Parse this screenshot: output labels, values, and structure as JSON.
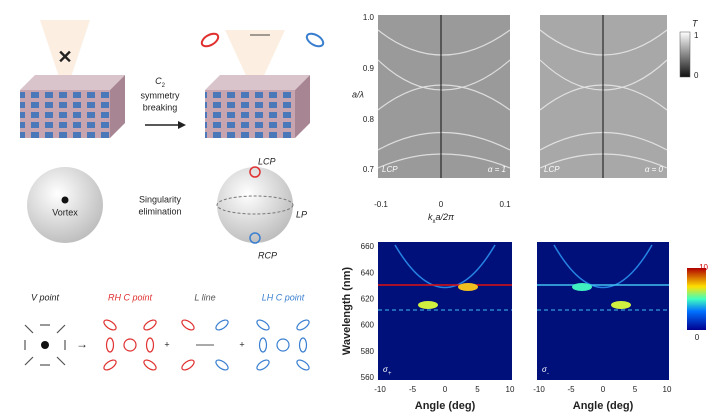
{
  "schematic": {
    "c_symbol": "C",
    "c_subscript": "2",
    "breaking_lines": [
      "symmetry",
      "breaking"
    ],
    "singularity_lines": [
      "Singularity",
      "elimination"
    ],
    "vortex": "Vortex",
    "lcp": "LCP",
    "lp": "LP",
    "rcp": "RCP",
    "polarization_row": [
      "V point",
      "RH C point",
      "L line",
      "LH C point"
    ]
  },
  "band_panels": {
    "y_label": "a/λ",
    "x_label_main": "k",
    "x_label_sub": "x",
    "x_label_rest": "a/2π",
    "y_ticks": [
      "1.0",
      "0.9",
      "0.8",
      "0.7"
    ],
    "x_ticks": [
      "-0.1",
      "0",
      "0.1"
    ],
    "panels": [
      {
        "pol": "LCP",
        "alpha": "α = 1"
      },
      {
        "pol": "LCP",
        "alpha": "α = 0"
      }
    ],
    "colorbar": {
      "title": "T",
      "max": "1",
      "min": "0"
    }
  },
  "spectra": {
    "y_label": "Wavelength (nm)",
    "y_ticks": [
      "660",
      "640",
      "620",
      "600",
      "580",
      "560"
    ],
    "x_ticks": [
      "-10",
      "-5",
      "0",
      "5",
      "10"
    ],
    "x_label": "Angle (deg)",
    "panels": [
      {
        "sigma": "σ",
        "sign": "+"
      },
      {
        "sigma": "σ",
        "sign": "-"
      }
    ],
    "colorbar": {
      "max": "10",
      "min": "0"
    }
  }
}
